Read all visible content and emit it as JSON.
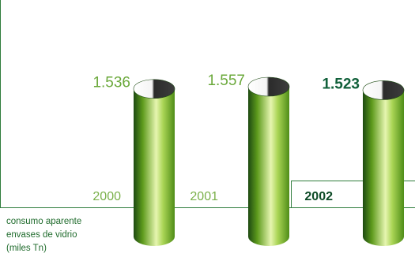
{
  "colors": {
    "frame": "#2f7d3c",
    "value_light": "#6aa83a",
    "value_highlight": "#11603a",
    "year_light": "#7ab04a",
    "year_highlight": "#0d4a26",
    "cylinder_dark": "#1d4a12",
    "cylinder_mid": "#6fae1e",
    "cylinder_light": "#e6f5b0",
    "cylinder_top": "#3a3a3a"
  },
  "caption": {
    "line1": "consumo aparente",
    "line2": "envases de vidrio",
    "line3": "(miles Tn)"
  },
  "chart_data": {
    "type": "bar",
    "categories": [
      "2000",
      "2001",
      "2002"
    ],
    "values": [
      1.536,
      1.557,
      1.523
    ],
    "value_labels": [
      "1.536",
      "1.557",
      "1.523"
    ],
    "highlight": "2002",
    "title": "",
    "xlabel": "",
    "ylabel": "",
    "grid": false,
    "legend": "none"
  }
}
